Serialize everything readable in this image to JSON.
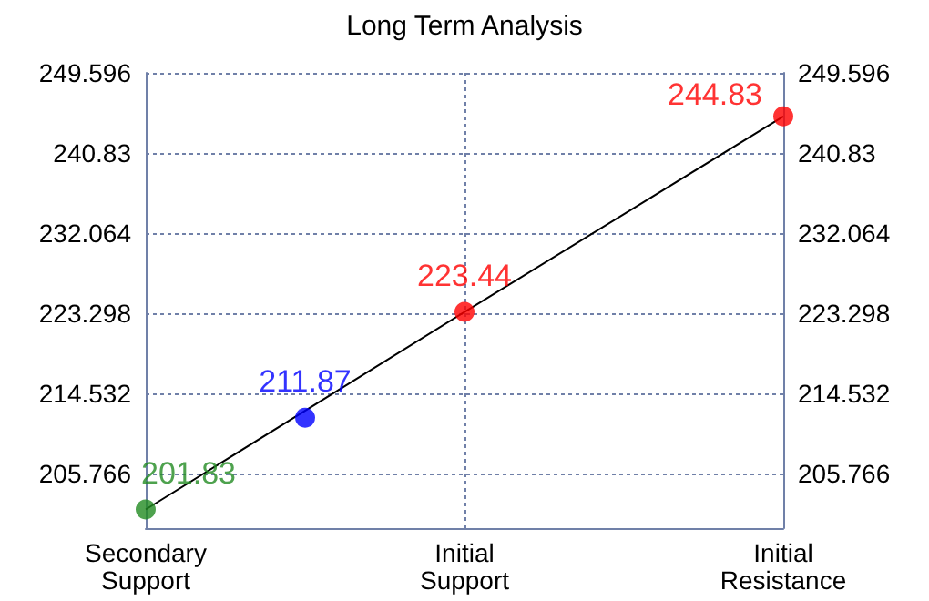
{
  "chart_data": {
    "type": "line",
    "title": "Long Term Analysis",
    "categories": [
      "Secondary\nSupport",
      null,
      "Initial\nSupport",
      null,
      "Initial\nResistance"
    ],
    "ylim": [
      199.79,
      249.596
    ],
    "yticks": [
      205.766,
      214.532,
      223.298,
      232.064,
      240.83,
      249.596
    ],
    "y2lim": [
      199.79,
      249.596
    ],
    "y2ticks": [
      205.766,
      214.532,
      223.298,
      232.064,
      240.83,
      249.596
    ],
    "grid": true,
    "series": [
      {
        "color": "#000000",
        "marker": "none",
        "values": [
          201.83,
          null,
          223.44,
          null,
          244.83
        ]
      },
      {
        "type": "scatter",
        "marker": "circle",
        "values": [
          201.83,
          211.87,
          223.44,
          null,
          244.83
        ],
        "colors": [
          "#228b22",
          "#0000ff",
          "#ff0000",
          null,
          "#ff0000"
        ],
        "value_labels": [
          "201.83",
          "211.87",
          "223.44",
          null,
          "244.83"
        ]
      }
    ]
  }
}
